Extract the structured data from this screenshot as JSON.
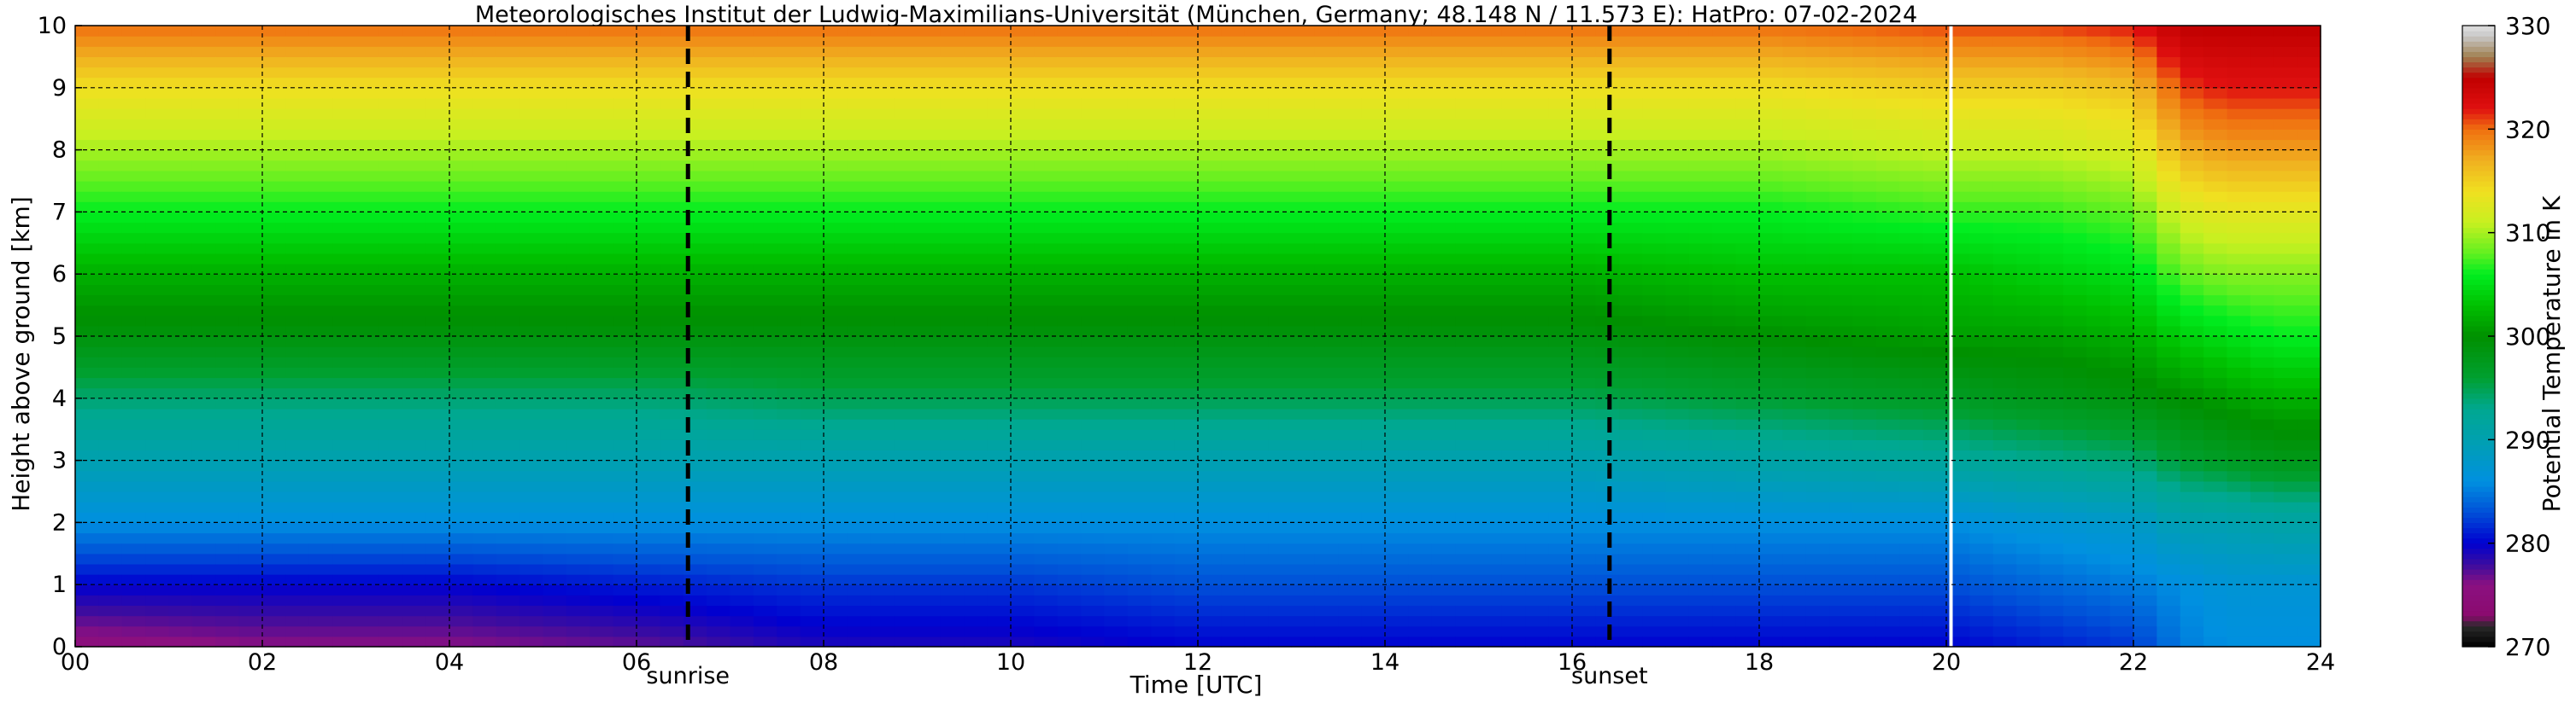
{
  "chart_data": {
    "type": "heatmap",
    "title": "Meteorologisches Institut der Ludwig-Maximilians-Universität (München, Germany; 48.148 N / 11.573 E):    HatPro: 07-02-2024",
    "xlabel": "Time [UTC]",
    "ylabel": "Height above ground [km]",
    "xlim": [
      0,
      24
    ],
    "ylim": [
      0,
      10
    ],
    "x_ticks": [
      0,
      2,
      4,
      6,
      8,
      10,
      12,
      14,
      16,
      18,
      20,
      22,
      24
    ],
    "x_tick_labels": [
      "00",
      "02",
      "04",
      "06",
      "08",
      "10",
      "12",
      "14",
      "16",
      "18",
      "20",
      "22",
      "24"
    ],
    "y_ticks": [
      0,
      1,
      2,
      3,
      4,
      5,
      6,
      7,
      8,
      9,
      10
    ],
    "y_tick_labels": [
      "0",
      "1",
      "2",
      "3",
      "4",
      "5",
      "6",
      "7",
      "8",
      "9",
      "10"
    ],
    "grid": true,
    "events": [
      {
        "label": "sunrise",
        "time": 6.55
      },
      {
        "label": "sunset",
        "time": 16.4
      }
    ],
    "data_gap_time": 20.05,
    "colorbar": {
      "label": "Potential Temperature in K",
      "range": [
        270,
        330
      ],
      "ticks": [
        270,
        280,
        290,
        300,
        310,
        320,
        330
      ],
      "colors": [
        {
          "value": 270,
          "color": "#000000"
        },
        {
          "value": 272,
          "color": "#2a2a2a"
        },
        {
          "value": 273,
          "color": "#8b0a6e"
        },
        {
          "value": 276,
          "color": "#8b1080"
        },
        {
          "value": 278,
          "color": "#3a0ca0"
        },
        {
          "value": 280,
          "color": "#0000d0"
        },
        {
          "value": 283,
          "color": "#0050d8"
        },
        {
          "value": 286,
          "color": "#0090e0"
        },
        {
          "value": 290,
          "color": "#00a0b0"
        },
        {
          "value": 293,
          "color": "#00a890"
        },
        {
          "value": 296,
          "color": "#00a030"
        },
        {
          "value": 300,
          "color": "#009000"
        },
        {
          "value": 303,
          "color": "#00c000"
        },
        {
          "value": 306,
          "color": "#00ee20"
        },
        {
          "value": 308,
          "color": "#60f020"
        },
        {
          "value": 311,
          "color": "#c8f020"
        },
        {
          "value": 314,
          "color": "#f0e020"
        },
        {
          "value": 317,
          "color": "#f0b020"
        },
        {
          "value": 320,
          "color": "#f07010"
        },
        {
          "value": 322,
          "color": "#e01010"
        },
        {
          "value": 325,
          "color": "#c00000"
        },
        {
          "value": 327,
          "color": "#a08050"
        },
        {
          "value": 329,
          "color": "#c8c8c8"
        },
        {
          "value": 330,
          "color": "#e0e0e0"
        }
      ]
    },
    "series": [
      {
        "time": 0.0,
        "theta": [
          275,
          280,
          286,
          290,
          294,
          299,
          302,
          306,
          310,
          314,
          320
        ]
      },
      {
        "time": 2.0,
        "theta": [
          276,
          280,
          286,
          290,
          294,
          299,
          302,
          306,
          310,
          314,
          320
        ]
      },
      {
        "time": 4.0,
        "theta": [
          276,
          280,
          286,
          290,
          294,
          299,
          302,
          306,
          310,
          314,
          320
        ]
      },
      {
        "time": 6.0,
        "theta": [
          277,
          281,
          286,
          290,
          294,
          299,
          302,
          306,
          310,
          314,
          320
        ]
      },
      {
        "time": 8.0,
        "theta": [
          279,
          282,
          286,
          290,
          295,
          299,
          302,
          306,
          310,
          314,
          320
        ]
      },
      {
        "time": 10.0,
        "theta": [
          279,
          282,
          286,
          290,
          295,
          299,
          302,
          306,
          310,
          314,
          320
        ]
      },
      {
        "time": 12.0,
        "theta": [
          280,
          283,
          286,
          290,
          295,
          299,
          302,
          306,
          310,
          314,
          320
        ]
      },
      {
        "time": 14.0,
        "theta": [
          280,
          283,
          286,
          290,
          295,
          299,
          302,
          306,
          310,
          314,
          320
        ]
      },
      {
        "time": 16.0,
        "theta": [
          280,
          283,
          286,
          290,
          295,
          299,
          302,
          306,
          310,
          314,
          320
        ]
      },
      {
        "time": 18.0,
        "theta": [
          280,
          283,
          286,
          291,
          296,
          300,
          303,
          306,
          310,
          314,
          320
        ]
      },
      {
        "time": 20.0,
        "theta": [
          280,
          283,
          286,
          292,
          297,
          301,
          303,
          307,
          311,
          315,
          321
        ]
      },
      {
        "time": 21.0,
        "theta": [
          281,
          284,
          287,
          293,
          298,
          301,
          304,
          307,
          311,
          315,
          321
        ]
      },
      {
        "time": 22.0,
        "theta": [
          282,
          285,
          288,
          294,
          299,
          302,
          305,
          308,
          312,
          316,
          322
        ]
      },
      {
        "time": 22.5,
        "theta": [
          285,
          286,
          290,
          296,
          300,
          304,
          308,
          312,
          317,
          321,
          325
        ]
      },
      {
        "time": 23.0,
        "theta": [
          286,
          287,
          290,
          297,
          301,
          305,
          309,
          313,
          318,
          322,
          325
        ]
      },
      {
        "time": 23.5,
        "theta": [
          286,
          287,
          291,
          298,
          302,
          306,
          309,
          313,
          318,
          322,
          325
        ]
      },
      {
        "time": 24.0,
        "theta": [
          286,
          287,
          291,
          298,
          302,
          306,
          309,
          313,
          318,
          322,
          325
        ]
      }
    ]
  }
}
